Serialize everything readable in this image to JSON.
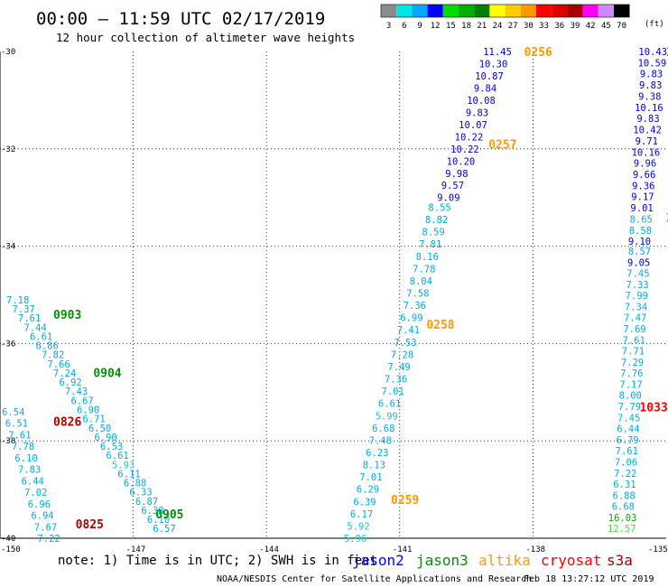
{
  "header": {
    "title": "00:00 – 11:59 UTC 02/17/2019",
    "subtitle": "12 hour collection of altimeter wave heights"
  },
  "color_scale": {
    "unit": "(ft)",
    "bins": [
      {
        "label": "3",
        "color": "#8c8c8c"
      },
      {
        "label": "6",
        "color": "#00e5e5"
      },
      {
        "label": "9",
        "color": "#00aaff"
      },
      {
        "label": "12",
        "color": "#0000ff"
      },
      {
        "label": "15",
        "color": "#00dd00"
      },
      {
        "label": "18",
        "color": "#00b000"
      },
      {
        "label": "21",
        "color": "#008000"
      },
      {
        "label": "24",
        "color": "#ffff00"
      },
      {
        "label": "27",
        "color": "#ffcc00"
      },
      {
        "label": "30",
        "color": "#ff9900"
      },
      {
        "label": "33",
        "color": "#ff0000"
      },
      {
        "label": "36",
        "color": "#dd0000"
      },
      {
        "label": "39",
        "color": "#aa0000"
      },
      {
        "label": "42",
        "color": "#ff00ff"
      },
      {
        "label": "45",
        "color": "#cc88ff"
      },
      {
        "label": "70",
        "color": "#000000"
      }
    ]
  },
  "footer": {
    "note": "note:  1) Time is in UTC; 2) SWH is in feet",
    "credit": "NOAA/NESDIS Center for Satellite Applications and Research",
    "timestamp": "Feb 18 13:27:12 UTC 2019"
  },
  "chart_data": {
    "type": "scatter",
    "xlim": [
      -150,
      -135
    ],
    "ylim": [
      -40,
      -30
    ],
    "x_ticks": [
      "-150",
      "-147",
      "-144",
      "-141",
      "-138",
      "-135"
    ],
    "y_ticks": [
      "-30",
      "-32",
      "-34",
      "-36",
      "-38",
      "-40"
    ],
    "grid": true,
    "legend_position": "bottom-right",
    "satellites": [
      {
        "name": "jason2",
        "color": "#0000ff"
      },
      {
        "name": "jason3",
        "color": "#009000"
      },
      {
        "name": "altika",
        "color": "#ff9900"
      },
      {
        "name": "cryosat",
        "color": "#ff0000"
      },
      {
        "name": "s3a",
        "color": "#aa0000"
      }
    ],
    "time_labels": [
      {
        "text": "0903",
        "x": -148.8,
        "y": -35.4,
        "satellite": "jason3"
      },
      {
        "text": "0904",
        "x": -147.9,
        "y": -36.6,
        "satellite": "jason3"
      },
      {
        "text": "0905",
        "x": -146.5,
        "y": -39.5,
        "satellite": "jason3"
      },
      {
        "text": "0826",
        "x": -148.8,
        "y": -37.6,
        "satellite": "s3a"
      },
      {
        "text": "0825",
        "x": -148.3,
        "y": -39.7,
        "satellite": "s3a"
      },
      {
        "text": "0256",
        "x": -138.2,
        "y": -30.0,
        "satellite": "altika"
      },
      {
        "text": "0257",
        "x": -139.0,
        "y": -31.9,
        "satellite": "altika"
      },
      {
        "text": "0258",
        "x": -140.4,
        "y": -35.6,
        "satellite": "altika"
      },
      {
        "text": "0259",
        "x": -141.2,
        "y": -39.2,
        "satellite": "altika"
      },
      {
        "text": "1032",
        "x": -135.0,
        "y": -33.4,
        "satellite": "cryosat"
      },
      {
        "text": "1033",
        "x": -135.6,
        "y": -37.3,
        "satellite": "cryosat"
      },
      {
        "text": "10",
        "x": -135.0,
        "y": -30.0,
        "satellite": "cryosat"
      }
    ],
    "tracks": [
      {
        "satellite": "jason3",
        "x_start": -149.6,
        "x_end": -146.3,
        "y_start": -35.1,
        "y_end": -39.8,
        "values": [
          "7.18",
          "7.37",
          "7.61",
          "7.44",
          "6.61",
          "6.86",
          "7.82",
          "7.66",
          "7.24",
          "6.92",
          "7.43",
          "6.67",
          "6.90",
          "6.71",
          "6.50",
          "6.90",
          "6.53",
          "6.61",
          "5.93",
          "6.11",
          "6.88",
          "6.33",
          "6.87",
          "6.38",
          "6.10",
          "6.57"
        ]
      },
      {
        "satellite": "s3a",
        "x_start": -149.7,
        "x_end": -148.9,
        "y_start": -37.4,
        "y_end": -40.0,
        "values": [
          "6.54",
          "6.51",
          "7.61",
          "7.78",
          "6.10",
          "7.83",
          "6.44",
          "7.02",
          "6.96",
          "6.94",
          "7.67",
          "7.22"
        ]
      },
      {
        "satellite": "jason2",
        "x_start": -138.8,
        "x_end": -139.9,
        "y_start": -30.0,
        "y_end": -33.0,
        "values": [
          "11.45",
          "10.30",
          "10.87",
          "9.84",
          "10.08",
          "9.83",
          "10.07",
          "10.22",
          "10.22",
          "10.20",
          "9.98",
          "9.57",
          "9.09"
        ]
      },
      {
        "satellite": "altika",
        "x_start": -140.1,
        "x_end": -142.0,
        "y_start": -33.2,
        "y_end": -40.0,
        "values": [
          "8.55",
          "8.82",
          "8.59",
          "7.81",
          "8.16",
          "7.78",
          "8.04",
          "7.58",
          "7.36",
          "6.99",
          "7.41",
          "7.53",
          "7.28",
          "7.49",
          "7.36",
          "7.01",
          "6.61",
          "5.99",
          "6.68",
          "7.48",
          "6.23",
          "8.13",
          "7.01",
          "6.29",
          "6.39",
          "6.17",
          "5.92",
          "5.96"
        ]
      },
      {
        "satellite": "jason2",
        "x_start": -135.3,
        "x_end": -135.6,
        "y_start": -30.0,
        "y_end": -33.9,
        "values": [
          "10.43",
          "10.59",
          "9.83",
          "9.83",
          "9.38",
          "10.16",
          "9.83",
          "10.42",
          "9.71",
          "10.16",
          "9.96",
          "9.66",
          "9.36",
          "9.17",
          "9.01",
          "8.65",
          "8.58",
          "9.10"
        ]
      },
      {
        "satellite": "cryosat",
        "x_start": -135.6,
        "x_end": -136.0,
        "y_start": -34.1,
        "y_end": -39.8,
        "values": [
          "8.57",
          "9.05",
          "7.45",
          "7.33",
          "7.99",
          "7.34",
          "7.47",
          "7.69",
          "7.61",
          "7.71",
          "7.29",
          "7.76",
          "7.17",
          "8.00",
          "7.79",
          "7.45",
          "6.44",
          "6.79",
          "7.61",
          "7.06",
          "7.22",
          "6.31",
          "6.88",
          "6.68",
          "16.03",
          "12.57"
        ]
      }
    ]
  }
}
